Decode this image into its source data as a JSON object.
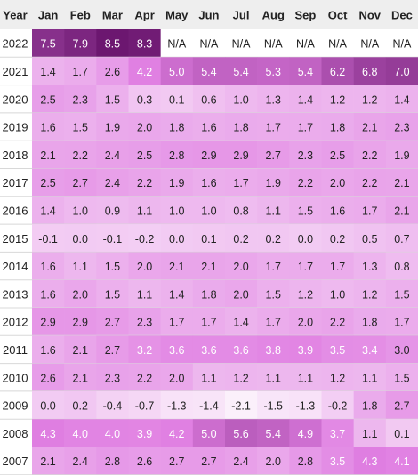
{
  "chart_data": {
    "type": "heatmap",
    "title": "",
    "row_header": "Year",
    "columns": [
      "Jan",
      "Feb",
      "Mar",
      "Apr",
      "May",
      "Jun",
      "Jul",
      "Aug",
      "Sep",
      "Oct",
      "Nov",
      "Dec"
    ],
    "rows": [
      {
        "year": "2022",
        "values": [
          "7.5",
          "7.9",
          "8.5",
          "8.3",
          "N/A",
          "N/A",
          "N/A",
          "N/A",
          "N/A",
          "N/A",
          "N/A",
          "N/A"
        ]
      },
      {
        "year": "2021",
        "values": [
          "1.4",
          "1.7",
          "2.6",
          "4.2",
          "5.0",
          "5.4",
          "5.4",
          "5.3",
          "5.4",
          "6.2",
          "6.8",
          "7.0"
        ]
      },
      {
        "year": "2020",
        "values": [
          "2.5",
          "2.3",
          "1.5",
          "0.3",
          "0.1",
          "0.6",
          "1.0",
          "1.3",
          "1.4",
          "1.2",
          "1.2",
          "1.4"
        ]
      },
      {
        "year": "2019",
        "values": [
          "1.6",
          "1.5",
          "1.9",
          "2.0",
          "1.8",
          "1.6",
          "1.8",
          "1.7",
          "1.7",
          "1.8",
          "2.1",
          "2.3"
        ]
      },
      {
        "year": "2018",
        "values": [
          "2.1",
          "2.2",
          "2.4",
          "2.5",
          "2.8",
          "2.9",
          "2.9",
          "2.7",
          "2.3",
          "2.5",
          "2.2",
          "1.9"
        ]
      },
      {
        "year": "2017",
        "values": [
          "2.5",
          "2.7",
          "2.4",
          "2.2",
          "1.9",
          "1.6",
          "1.7",
          "1.9",
          "2.2",
          "2.0",
          "2.2",
          "2.1"
        ]
      },
      {
        "year": "2016",
        "values": [
          "1.4",
          "1.0",
          "0.9",
          "1.1",
          "1.0",
          "1.0",
          "0.8",
          "1.1",
          "1.5",
          "1.6",
          "1.7",
          "2.1"
        ]
      },
      {
        "year": "2015",
        "values": [
          "-0.1",
          "0.0",
          "-0.1",
          "-0.2",
          "0.0",
          "0.1",
          "0.2",
          "0.2",
          "0.0",
          "0.2",
          "0.5",
          "0.7"
        ]
      },
      {
        "year": "2014",
        "values": [
          "1.6",
          "1.1",
          "1.5",
          "2.0",
          "2.1",
          "2.1",
          "2.0",
          "1.7",
          "1.7",
          "1.7",
          "1.3",
          "0.8"
        ]
      },
      {
        "year": "2013",
        "values": [
          "1.6",
          "2.0",
          "1.5",
          "1.1",
          "1.4",
          "1.8",
          "2.0",
          "1.5",
          "1.2",
          "1.0",
          "1.2",
          "1.5"
        ]
      },
      {
        "year": "2012",
        "values": [
          "2.9",
          "2.9",
          "2.7",
          "2.3",
          "1.7",
          "1.7",
          "1.4",
          "1.7",
          "2.0",
          "2.2",
          "1.8",
          "1.7"
        ]
      },
      {
        "year": "2011",
        "values": [
          "1.6",
          "2.1",
          "2.7",
          "3.2",
          "3.6",
          "3.6",
          "3.6",
          "3.8",
          "3.9",
          "3.5",
          "3.4",
          "3.0"
        ]
      },
      {
        "year": "2010",
        "values": [
          "2.6",
          "2.1",
          "2.3",
          "2.2",
          "2.0",
          "1.1",
          "1.2",
          "1.1",
          "1.1",
          "1.2",
          "1.1",
          "1.5"
        ]
      },
      {
        "year": "2009",
        "values": [
          "0.0",
          "0.2",
          "-0.4",
          "-0.7",
          "-1.3",
          "-1.4",
          "-2.1",
          "-1.5",
          "-1.3",
          "-0.2",
          "1.8",
          "2.7"
        ]
      },
      {
        "year": "2008",
        "values": [
          "4.3",
          "4.0",
          "4.0",
          "3.9",
          "4.2",
          "5.0",
          "5.6",
          "5.4",
          "4.9",
          "3.7",
          "1.1",
          "0.1"
        ]
      },
      {
        "year": "2007",
        "values": [
          "2.1",
          "2.4",
          "2.8",
          "2.6",
          "2.7",
          "2.7",
          "2.4",
          "2.0",
          "2.8",
          "3.5",
          "4.3",
          "4.1"
        ]
      }
    ],
    "color_scale": {
      "low": "#fbf0fb",
      "mid": "#e07fe2",
      "high": "#6c1770",
      "na": "#ffffff"
    },
    "legend": "none",
    "grid": false
  }
}
